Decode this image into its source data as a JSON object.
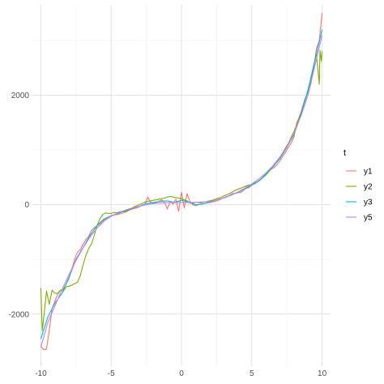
{
  "chart_data": {
    "type": "line",
    "title": "",
    "xlabel": "",
    "ylabel": "",
    "xlim": [
      -10.6,
      10.6
    ],
    "ylim": [
      -2950,
      3650
    ],
    "x_ticks": [
      -10,
      -5,
      0,
      5,
      10
    ],
    "x_tick_labels": [
      "-10",
      "-5",
      "0",
      "5",
      "10"
    ],
    "x_minor_ticks": [
      -7.5,
      -2.5,
      2.5,
      7.5
    ],
    "y_ticks": [
      -2000,
      0,
      2000
    ],
    "y_tick_labels": [
      "-2000",
      "0",
      "2000"
    ],
    "y_minor_ticks": [
      -1000,
      1000,
      3000
    ],
    "grid": true,
    "theme": "minimal",
    "legend": {
      "title": "t",
      "position": "right"
    },
    "series": [
      {
        "name": "y1",
        "color": "#F8766D",
        "points": [
          [
            -10,
            -2580
          ],
          [
            -9.8,
            -2650
          ],
          [
            -9.6,
            -2640
          ],
          [
            -9.4,
            -2300
          ],
          [
            -9.2,
            -1900
          ],
          [
            -9,
            -1760
          ],
          [
            -8.8,
            -1640
          ],
          [
            -8.6,
            -1560
          ],
          [
            -8.4,
            -1540
          ],
          [
            -8.2,
            -1450
          ],
          [
            -8,
            -1350
          ],
          [
            -7.8,
            -1180
          ],
          [
            -7.6,
            -1000
          ],
          [
            -7.4,
            -870
          ],
          [
            -7.2,
            -820
          ],
          [
            -7,
            -720
          ],
          [
            -6.8,
            -640
          ],
          [
            -6.6,
            -580
          ],
          [
            -6.4,
            -470
          ],
          [
            -6.2,
            -420
          ],
          [
            -6,
            -390
          ],
          [
            -5.8,
            -350
          ],
          [
            -5.6,
            -300
          ],
          [
            -5.4,
            -260
          ],
          [
            -5.2,
            -250
          ],
          [
            -5,
            -210
          ],
          [
            -4.8,
            -190
          ],
          [
            -4.6,
            -180
          ],
          [
            -4.4,
            -170
          ],
          [
            -4.2,
            -160
          ],
          [
            -4,
            -120
          ],
          [
            -3.8,
            -100
          ],
          [
            -3.6,
            -90
          ],
          [
            -3.4,
            -70
          ],
          [
            -3.2,
            -60
          ],
          [
            -3,
            -40
          ],
          [
            -2.8,
            -10
          ],
          [
            -2.6,
            10
          ],
          [
            -2.4,
            140
          ],
          [
            -2.2,
            50
          ],
          [
            -2,
            20
          ],
          [
            -1.8,
            40
          ],
          [
            -1.6,
            60
          ],
          [
            -1.4,
            90
          ],
          [
            -1.2,
            40
          ],
          [
            -1,
            -80
          ],
          [
            -0.8,
            60
          ],
          [
            -0.6,
            10
          ],
          [
            -0.4,
            100
          ],
          [
            -0.2,
            -120
          ],
          [
            0,
            230
          ],
          [
            0.2,
            -60
          ],
          [
            0.4,
            200
          ],
          [
            0.6,
            60
          ],
          [
            0.8,
            0
          ],
          [
            1,
            -20
          ],
          [
            1.2,
            0
          ],
          [
            1.4,
            10
          ],
          [
            1.6,
            20
          ],
          [
            1.8,
            30
          ],
          [
            2,
            40
          ],
          [
            2.2,
            50
          ],
          [
            2.4,
            60
          ],
          [
            2.6,
            80
          ],
          [
            2.8,
            100
          ],
          [
            3,
            130
          ],
          [
            3.2,
            150
          ],
          [
            3.4,
            160
          ],
          [
            3.6,
            200
          ],
          [
            3.8,
            210
          ],
          [
            4,
            230
          ],
          [
            4.2,
            220
          ],
          [
            4.4,
            260
          ],
          [
            4.6,
            300
          ],
          [
            4.8,
            310
          ],
          [
            5,
            360
          ],
          [
            5.2,
            380
          ],
          [
            5.4,
            420
          ],
          [
            5.6,
            460
          ],
          [
            5.8,
            500
          ],
          [
            6,
            560
          ],
          [
            6.2,
            610
          ],
          [
            6.4,
            650
          ],
          [
            6.6,
            680
          ],
          [
            6.8,
            730
          ],
          [
            7,
            800
          ],
          [
            7.2,
            880
          ],
          [
            7.4,
            960
          ],
          [
            7.6,
            1050
          ],
          [
            7.8,
            1120
          ],
          [
            8,
            1240
          ],
          [
            8.2,
            1500
          ],
          [
            8.4,
            1600
          ],
          [
            8.6,
            1780
          ],
          [
            8.8,
            1950
          ],
          [
            9,
            2050
          ],
          [
            9.2,
            2200
          ],
          [
            9.4,
            2500
          ],
          [
            9.6,
            2850
          ],
          [
            9.8,
            3000
          ],
          [
            10,
            3500
          ]
        ]
      },
      {
        "name": "y2",
        "color": "#7CAE00",
        "points": [
          [
            -10,
            -1520
          ],
          [
            -9.9,
            -2300
          ],
          [
            -9.8,
            -2080
          ],
          [
            -9.6,
            -1580
          ],
          [
            -9.4,
            -1820
          ],
          [
            -9.2,
            -1560
          ],
          [
            -9,
            -1620
          ],
          [
            -8.8,
            -1620
          ],
          [
            -8.6,
            -1560
          ],
          [
            -8.4,
            -1580
          ],
          [
            -8.2,
            -1500
          ],
          [
            -8,
            -1490
          ],
          [
            -7.8,
            -1470
          ],
          [
            -7.6,
            -1440
          ],
          [
            -7.4,
            -1420
          ],
          [
            -7.2,
            -1300
          ],
          [
            -7,
            -1100
          ],
          [
            -6.8,
            -930
          ],
          [
            -6.6,
            -800
          ],
          [
            -6.4,
            -720
          ],
          [
            -6.2,
            -560
          ],
          [
            -6,
            -380
          ],
          [
            -5.8,
            -260
          ],
          [
            -5.6,
            -180
          ],
          [
            -5.4,
            -150
          ],
          [
            -5.2,
            -160
          ],
          [
            -5,
            -160
          ],
          [
            -4.8,
            -140
          ],
          [
            -4.6,
            -150
          ],
          [
            -4.4,
            -130
          ],
          [
            -4.2,
            -120
          ],
          [
            -4,
            -140
          ],
          [
            -3.8,
            -110
          ],
          [
            -3.6,
            -80
          ],
          [
            -3.4,
            -40
          ],
          [
            -3.2,
            -20
          ],
          [
            -3,
            0
          ],
          [
            -2.8,
            20
          ],
          [
            -2.6,
            50
          ],
          [
            -2.4,
            60
          ],
          [
            -2.2,
            70
          ],
          [
            -2,
            80
          ],
          [
            -1.8,
            90
          ],
          [
            -1.6,
            100
          ],
          [
            -1.4,
            110
          ],
          [
            -1.2,
            120
          ],
          [
            -1,
            140
          ],
          [
            -0.8,
            150
          ],
          [
            -0.6,
            140
          ],
          [
            -0.4,
            130
          ],
          [
            -0.2,
            120
          ],
          [
            0,
            110
          ],
          [
            0.2,
            90
          ],
          [
            0.4,
            70
          ],
          [
            0.6,
            30
          ],
          [
            0.8,
            20
          ],
          [
            1,
            40
          ],
          [
            1.2,
            40
          ],
          [
            1.4,
            30
          ],
          [
            1.6,
            50
          ],
          [
            1.8,
            60
          ],
          [
            2,
            70
          ],
          [
            2.2,
            80
          ],
          [
            2.4,
            100
          ],
          [
            2.6,
            120
          ],
          [
            2.8,
            130
          ],
          [
            3,
            160
          ],
          [
            3.2,
            180
          ],
          [
            3.4,
            200
          ],
          [
            3.6,
            230
          ],
          [
            3.8,
            260
          ],
          [
            4,
            280
          ],
          [
            4.2,
            300
          ],
          [
            4.4,
            320
          ],
          [
            4.6,
            340
          ],
          [
            4.8,
            360
          ],
          [
            5,
            360
          ],
          [
            5.2,
            400
          ],
          [
            5.4,
            420
          ],
          [
            5.6,
            450
          ],
          [
            5.8,
            500
          ],
          [
            6,
            540
          ],
          [
            6.2,
            600
          ],
          [
            6.4,
            660
          ],
          [
            6.6,
            720
          ],
          [
            6.8,
            800
          ],
          [
            7,
            870
          ],
          [
            7.2,
            950
          ],
          [
            7.4,
            1040
          ],
          [
            7.6,
            1120
          ],
          [
            7.8,
            1230
          ],
          [
            8,
            1340
          ],
          [
            8.2,
            1460
          ],
          [
            8.4,
            1620
          ],
          [
            8.6,
            1750
          ],
          [
            8.8,
            1910
          ],
          [
            9,
            2080
          ],
          [
            9.2,
            2250
          ],
          [
            9.4,
            2520
          ],
          [
            9.6,
            2750
          ],
          [
            9.8,
            2200
          ],
          [
            9.85,
            2820
          ],
          [
            9.95,
            2620
          ],
          [
            10,
            2800
          ]
        ]
      },
      {
        "name": "y3",
        "color": "#00BFC4",
        "points": [
          [
            -10,
            -2450
          ],
          [
            -9.5,
            -2050
          ],
          [
            -9,
            -1800
          ],
          [
            -8.5,
            -1620
          ],
          [
            -8,
            -1330
          ],
          [
            -7.5,
            -1000
          ],
          [
            -7,
            -780
          ],
          [
            -6.5,
            -560
          ],
          [
            -6,
            -380
          ],
          [
            -5.5,
            -260
          ],
          [
            -5,
            -200
          ],
          [
            -4.5,
            -160
          ],
          [
            -4,
            -110
          ],
          [
            -3.5,
            -70
          ],
          [
            -3,
            -30
          ],
          [
            -2.5,
            20
          ],
          [
            -2,
            40
          ],
          [
            -1.5,
            60
          ],
          [
            -1,
            70
          ],
          [
            -0.5,
            40
          ],
          [
            0,
            80
          ],
          [
            0.5,
            50
          ],
          [
            1,
            0
          ],
          [
            1.5,
            10
          ],
          [
            2,
            50
          ],
          [
            2.5,
            90
          ],
          [
            3,
            120
          ],
          [
            3.5,
            180
          ],
          [
            4,
            220
          ],
          [
            4.5,
            290
          ],
          [
            5,
            360
          ],
          [
            5.5,
            430
          ],
          [
            6,
            560
          ],
          [
            6.5,
            690
          ],
          [
            7,
            840
          ],
          [
            7.5,
            1050
          ],
          [
            8,
            1280
          ],
          [
            8.5,
            1650
          ],
          [
            9,
            2100
          ],
          [
            9.5,
            2650
          ],
          [
            10,
            3200
          ]
        ]
      },
      {
        "name": "y5",
        "color": "#C77CFF",
        "points": [
          [
            -10,
            -2600
          ],
          [
            -9.5,
            -2150
          ],
          [
            -9,
            -1850
          ],
          [
            -8.5,
            -1550
          ],
          [
            -8,
            -1280
          ],
          [
            -7.5,
            -1020
          ],
          [
            -7,
            -790
          ],
          [
            -6.5,
            -590
          ],
          [
            -6,
            -430
          ],
          [
            -5.5,
            -300
          ],
          [
            -5,
            -210
          ],
          [
            -4.5,
            -150
          ],
          [
            -4,
            -100
          ],
          [
            -3.5,
            -60
          ],
          [
            -3,
            -30
          ],
          [
            -2.5,
            0
          ],
          [
            -2,
            20
          ],
          [
            -1.5,
            30
          ],
          [
            -1,
            40
          ],
          [
            -0.5,
            40
          ],
          [
            0,
            40
          ],
          [
            0.5,
            40
          ],
          [
            1,
            40
          ],
          [
            1.5,
            50
          ],
          [
            2,
            60
          ],
          [
            2.5,
            90
          ],
          [
            3,
            120
          ],
          [
            3.5,
            170
          ],
          [
            4,
            230
          ],
          [
            4.5,
            300
          ],
          [
            5,
            380
          ],
          [
            5.5,
            470
          ],
          [
            6,
            580
          ],
          [
            6.5,
            710
          ],
          [
            7,
            870
          ],
          [
            7.5,
            1060
          ],
          [
            8,
            1300
          ],
          [
            8.5,
            1620
          ],
          [
            9,
            2000
          ],
          [
            9.5,
            2550
          ],
          [
            10,
            3100
          ]
        ]
      }
    ]
  }
}
